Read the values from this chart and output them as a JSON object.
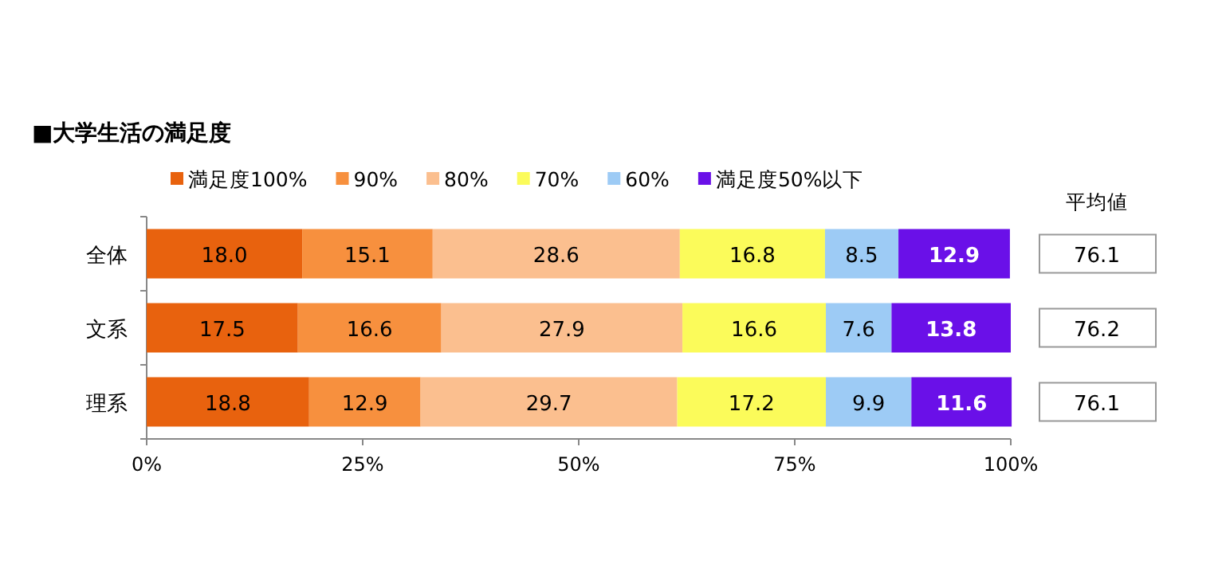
{
  "chart_data": {
    "type": "bar",
    "orientation": "horizontal",
    "stacked": true,
    "title": "■大学生活の満足度",
    "categories": [
      "全体",
      "文系",
      "理系"
    ],
    "series": [
      {
        "name": "満足度100%",
        "color": "#e8620e",
        "values": [
          18.0,
          17.5,
          18.8
        ],
        "value_labels": [
          "18.0",
          "17.5",
          "18.8"
        ]
      },
      {
        "name": "90%",
        "color": "#f7903e",
        "values": [
          15.1,
          16.6,
          12.9
        ],
        "value_labels": [
          "15.1",
          "16.6",
          "12.9"
        ]
      },
      {
        "name": "80%",
        "color": "#fbbf8f",
        "values": [
          28.6,
          27.9,
          29.7
        ],
        "value_labels": [
          "28.6",
          "27.9",
          "29.7"
        ]
      },
      {
        "name": "70%",
        "color": "#fbfb5a",
        "values": [
          16.8,
          16.6,
          17.2
        ],
        "value_labels": [
          "16.8",
          "16.6",
          "17.2"
        ]
      },
      {
        "name": "60%",
        "color": "#9dcbf5",
        "values": [
          8.5,
          7.6,
          9.9
        ],
        "value_labels": [
          "8.5",
          "7.6",
          "9.9"
        ]
      },
      {
        "name": "満足度50%以下",
        "color": "#6a10e8",
        "values": [
          12.9,
          13.8,
          11.6
        ],
        "value_labels": [
          "12.9",
          "13.8",
          "11.6"
        ]
      }
    ],
    "xlim": [
      0,
      100
    ],
    "xticks": [
      {
        "value": 0,
        "label": "0%"
      },
      {
        "value": 25,
        "label": "25%"
      },
      {
        "value": 50,
        "label": "50%"
      },
      {
        "value": 75,
        "label": "75%"
      },
      {
        "value": 100,
        "label": "100%"
      }
    ],
    "legend": "top",
    "grid": false,
    "annotations": [
      "平均値",
      "76.1",
      "76.2",
      "76.1"
    ]
  }
}
